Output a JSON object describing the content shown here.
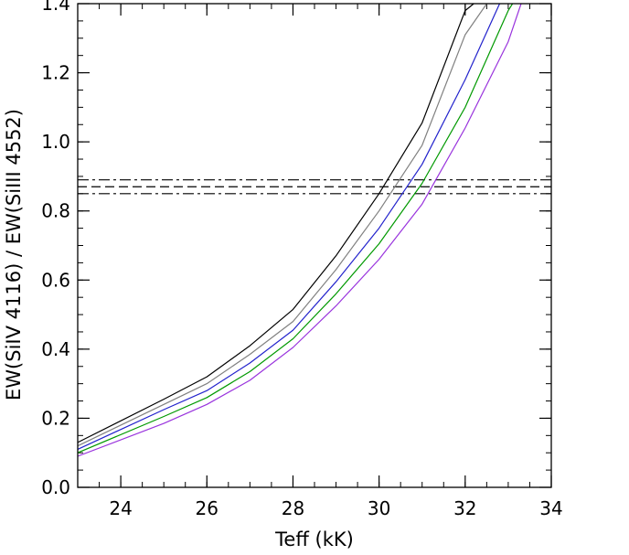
{
  "chart_data": {
    "type": "line",
    "title": "",
    "xlabel": "Teff (kK)",
    "ylabel": "EW(SiIV 4116) / EW(SiIII 4552)",
    "xlim": [
      23,
      34
    ],
    "ylim": [
      0,
      1.4
    ],
    "xticks": [
      24,
      26,
      28,
      30,
      32,
      34
    ],
    "xtick_labels": [
      "24",
      "26",
      "28",
      "30",
      "32",
      "34"
    ],
    "yticks": [
      0.0,
      0.2,
      0.4,
      0.6,
      0.8,
      1.0,
      1.2,
      1.4
    ],
    "ytick_labels": [
      "0.0",
      "0.2",
      "0.4",
      "0.6",
      "0.8",
      "1.0",
      "1.2",
      "1.4"
    ],
    "x_minor_step": 0.5,
    "y_minor_step": 0.05,
    "grid": false,
    "legend": "none",
    "series": [
      {
        "color": "#000000",
        "x": [
          23,
          25,
          26,
          27,
          28,
          29,
          30,
          31,
          32,
          32.2
        ],
        "y": [
          0.13,
          0.255,
          0.32,
          0.41,
          0.515,
          0.67,
          0.85,
          1.055,
          1.38,
          1.4
        ]
      },
      {
        "color": "#808080",
        "x": [
          23,
          25,
          26,
          27,
          28,
          29,
          30,
          31,
          32,
          32.5
        ],
        "y": [
          0.12,
          0.24,
          0.3,
          0.385,
          0.48,
          0.63,
          0.8,
          0.99,
          1.31,
          1.4
        ]
      },
      {
        "color": "#2222cc",
        "x": [
          23,
          25,
          26,
          27,
          28,
          29,
          30,
          31,
          32,
          32.8
        ],
        "y": [
          0.11,
          0.225,
          0.28,
          0.36,
          0.455,
          0.595,
          0.75,
          0.935,
          1.18,
          1.4
        ]
      },
      {
        "color": "#009900",
        "x": [
          23,
          25,
          26,
          27,
          28,
          29,
          30,
          31,
          32,
          33,
          33.1
        ],
        "y": [
          0.1,
          0.205,
          0.26,
          0.335,
          0.43,
          0.56,
          0.705,
          0.88,
          1.1,
          1.38,
          1.4
        ]
      },
      {
        "color": "#9933dd",
        "x": [
          23,
          25,
          26,
          27,
          28,
          29,
          30,
          31,
          32,
          33,
          33.3
        ],
        "y": [
          0.09,
          0.185,
          0.24,
          0.31,
          0.405,
          0.525,
          0.66,
          0.82,
          1.04,
          1.29,
          1.4
        ]
      }
    ],
    "hlines": [
      {
        "y": 0.89,
        "style": "dash-dot",
        "color": "#000000"
      },
      {
        "y": 0.87,
        "style": "dashed",
        "color": "#000000"
      },
      {
        "y": 0.85,
        "style": "dash-dot",
        "color": "#000000"
      }
    ]
  }
}
